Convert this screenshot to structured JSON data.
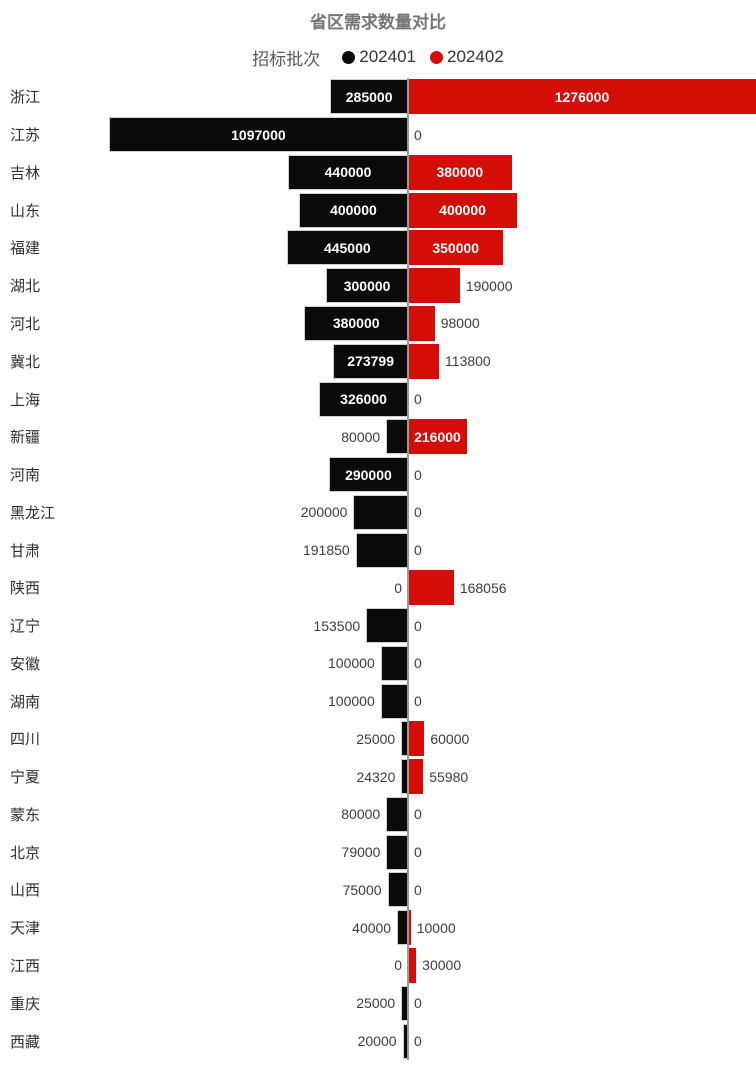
{
  "title": "省区需求数量对比",
  "legend": {
    "label": "招标批次",
    "items": [
      {
        "name": "202401",
        "color": "#0b0b0b"
      },
      {
        "name": "202402",
        "color": "#d40d06"
      }
    ]
  },
  "chart_data": {
    "type": "bar",
    "orientation": "horizontal-diverging",
    "title": "省区需求数量对比",
    "legend_title": "招标批次",
    "legend_position": "top",
    "axis_max": 1276000,
    "grid": false,
    "categories": [
      "浙江",
      "江苏",
      "吉林",
      "山东",
      "福建",
      "湖北",
      "河北",
      "冀北",
      "上海",
      "新疆",
      "河南",
      "黑龙江",
      "甘肃",
      "陕西",
      "辽宁",
      "安徽",
      "湖南",
      "四川",
      "宁夏",
      "蒙东",
      "北京",
      "山西",
      "天津",
      "江西",
      "重庆",
      "西藏"
    ],
    "series": [
      {
        "name": "202401",
        "side": "left",
        "color": "#0b0b0b",
        "values": [
          285000,
          1097000,
          440000,
          400000,
          445000,
          300000,
          380000,
          273799,
          326000,
          80000,
          290000,
          200000,
          191850,
          0,
          153500,
          100000,
          100000,
          25000,
          24320,
          80000,
          79000,
          75000,
          40000,
          0,
          25000,
          20000
        ]
      },
      {
        "name": "202402",
        "side": "right",
        "color": "#d40d06",
        "values": [
          1276000,
          0,
          380000,
          400000,
          350000,
          190000,
          98000,
          113800,
          0,
          216000,
          0,
          0,
          0,
          168056,
          0,
          0,
          0,
          60000,
          55980,
          0,
          0,
          0,
          10000,
          30000,
          0,
          0
        ]
      }
    ]
  },
  "colors": {
    "title": "#757575",
    "category_label": "#2f2f2f",
    "value_label_outside": "#3c3c3c",
    "value_label_inside": "#ffffff",
    "axis_line": "#9a9a9a",
    "background": "#ffffff"
  }
}
